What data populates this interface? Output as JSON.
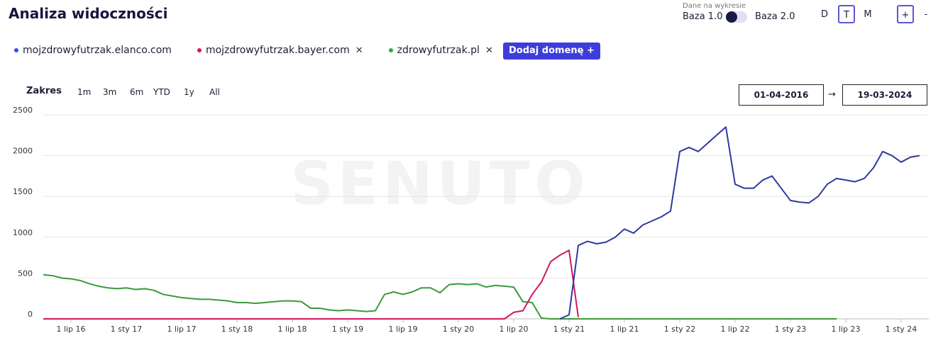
{
  "header": {
    "title": "Analiza widoczności",
    "data_label": "Dane na wykresie",
    "base1": "Baza 1.0",
    "base2": "Baza 2.0",
    "granularity": [
      "D",
      "T",
      "M"
    ],
    "zoom_in": "+",
    "zoom_out": "-"
  },
  "domains": [
    {
      "name": "mojzdrowyfutrzak.elanco.com",
      "color": "#3a4ee0",
      "removable": false
    },
    {
      "name": "mojzdrowyfutrzak.bayer.com",
      "color": "#d0185c",
      "removable": true
    },
    {
      "name": "zdrowyfutrzak.pl",
      "color": "#2fa84f",
      "removable": true
    }
  ],
  "add_domain": "Dodaj domenę +",
  "range": {
    "label": "Zakres",
    "options": [
      "1m",
      "3m",
      "6m",
      "YTD",
      "1y",
      "All"
    ],
    "from": "01-04-2016",
    "arrow": "→",
    "to": "19-03-2024"
  },
  "watermark": "SENUTO",
  "chart_data": {
    "type": "line",
    "categories": [
      null,
      null,
      null,
      "1 lip 16",
      null,
      null,
      null,
      null,
      null,
      "1 sty 17",
      null,
      null,
      null,
      null,
      null,
      "1 lip 17",
      null,
      null,
      null,
      null,
      null,
      "1 sty 18",
      null,
      null,
      null,
      null,
      null,
      "1 lip 18",
      null,
      null,
      null,
      null,
      null,
      "1 sty 19",
      null,
      null,
      null,
      null,
      null,
      "1 lip 19",
      null,
      null,
      null,
      null,
      null,
      "1 sty 20",
      null,
      null,
      null,
      null,
      null,
      "1 lip 20",
      null,
      null,
      null,
      null,
      null,
      "1 sty 21",
      null,
      null,
      null,
      null,
      null,
      "1 lip 21",
      null,
      null,
      null,
      null,
      null,
      "1 sty 22",
      null,
      null,
      null,
      null,
      null,
      "1 lip 22",
      null,
      null,
      null,
      null,
      null,
      "1 sty 23",
      null,
      null,
      null,
      null,
      null,
      "1 lip 23",
      null,
      null,
      null,
      null,
      null,
      "1 sty 24",
      null,
      null
    ],
    "series": [
      {
        "name": "mojzdrowyfutrzak.elanco.com",
        "color": "#2e3a9c",
        "values": [
          null,
          null,
          null,
          null,
          null,
          null,
          null,
          null,
          null,
          null,
          null,
          null,
          null,
          null,
          null,
          null,
          null,
          null,
          null,
          null,
          null,
          null,
          null,
          null,
          null,
          null,
          null,
          null,
          null,
          null,
          null,
          null,
          null,
          null,
          null,
          null,
          null,
          null,
          null,
          null,
          null,
          null,
          null,
          null,
          null,
          null,
          null,
          null,
          null,
          null,
          null,
          null,
          null,
          null,
          null,
          null,
          0,
          50,
          900,
          950,
          920,
          940,
          1000,
          1100,
          1050,
          1150,
          1200,
          1250,
          1320,
          2050,
          2100,
          2050,
          2150,
          2250,
          2350,
          1650,
          1600,
          1600,
          1700,
          1750,
          1600,
          1450,
          1430,
          1420,
          1500,
          1650,
          1720,
          1700,
          1680,
          1720,
          1850,
          2050,
          2000,
          1920,
          1980,
          2000
        ]
      },
      {
        "name": "mojzdrowyfutrzak.bayer.com",
        "color": "#d0185c",
        "values": [
          0,
          0,
          0,
          0,
          0,
          0,
          0,
          0,
          0,
          0,
          0,
          0,
          0,
          0,
          0,
          0,
          0,
          0,
          0,
          0,
          0,
          0,
          0,
          0,
          0,
          0,
          0,
          0,
          0,
          0,
          0,
          0,
          0,
          0,
          0,
          0,
          0,
          0,
          0,
          0,
          0,
          0,
          0,
          0,
          0,
          0,
          0,
          0,
          0,
          0,
          0,
          80,
          100,
          300,
          450,
          700,
          780,
          840,
          20,
          null,
          null,
          null,
          null,
          null,
          null,
          null,
          null,
          null,
          null,
          null,
          null,
          null,
          null,
          null,
          null,
          null,
          null,
          null,
          null,
          null,
          null,
          null,
          null,
          null,
          null,
          null,
          null,
          null,
          null,
          null,
          null,
          null,
          null,
          null,
          null,
          null
        ]
      },
      {
        "name": "zdrowyfutrzak.pl",
        "color": "#3a9a3e",
        "values": [
          540,
          530,
          500,
          490,
          470,
          430,
          400,
          380,
          370,
          380,
          360,
          370,
          350,
          300,
          280,
          260,
          250,
          240,
          240,
          230,
          220,
          200,
          200,
          190,
          200,
          210,
          220,
          220,
          210,
          130,
          130,
          110,
          100,
          110,
          100,
          90,
          100,
          300,
          330,
          300,
          330,
          380,
          380,
          320,
          420,
          430,
          420,
          430,
          390,
          410,
          400,
          390,
          210,
          200,
          10,
          0,
          0,
          0,
          0,
          0,
          0,
          0,
          0,
          0,
          0,
          0,
          0,
          0,
          0,
          0,
          0,
          0,
          0,
          0,
          0,
          0,
          0,
          0,
          0,
          0,
          0,
          0,
          0,
          0,
          0,
          0,
          0,
          null,
          null,
          null,
          null,
          null,
          null,
          null,
          null,
          null
        ]
      }
    ],
    "ylim": [
      0,
      2500
    ],
    "yticks": [
      0,
      500,
      1000,
      1500,
      2000,
      2500
    ],
    "grid": true
  }
}
